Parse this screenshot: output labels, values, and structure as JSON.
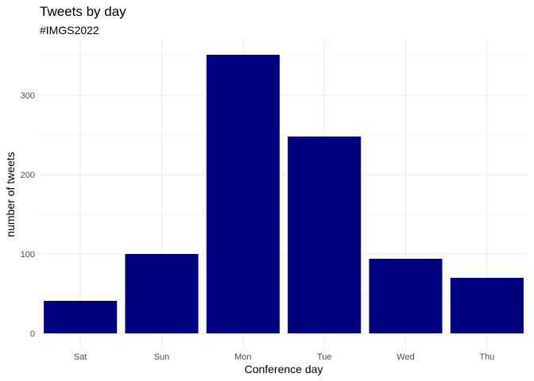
{
  "chart_data": {
    "type": "bar",
    "title": "Tweets by day",
    "subtitle": "#IMGS2022",
    "xlabel": "Conference day",
    "ylabel": "number of tweets",
    "categories": [
      "Sat",
      "Sun",
      "Mon",
      "Tue",
      "Wed",
      "Thu"
    ],
    "values": [
      41,
      100,
      351,
      248,
      94,
      70
    ],
    "ylim": [
      0,
      370
    ],
    "yticks": [
      "0",
      "100",
      "200",
      "300"
    ],
    "grid": true,
    "bar_color": "#000080",
    "grid_color": "#ebebeb"
  }
}
